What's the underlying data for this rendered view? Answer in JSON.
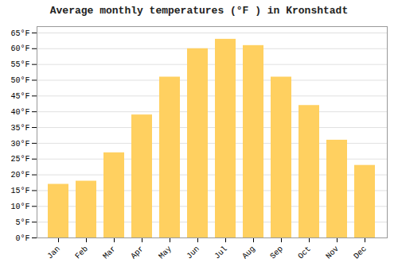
{
  "chart_data": {
    "type": "bar",
    "title": "Average monthly temperatures (°F ) in Kronshtadt",
    "categories": [
      "Jan",
      "Feb",
      "Mar",
      "Apr",
      "May",
      "Jun",
      "Jul",
      "Aug",
      "Sep",
      "Oct",
      "Nov",
      "Dec"
    ],
    "values": [
      17,
      18,
      27,
      39,
      51,
      60,
      63,
      61,
      51,
      42,
      31,
      23
    ],
    "color": "#FFD060",
    "ylim": [
      0,
      67
    ],
    "yticks": [
      {
        "value": 0,
        "label": "0°F"
      },
      {
        "value": 5,
        "label": "5°F"
      },
      {
        "value": 10,
        "label": "10°F"
      },
      {
        "value": 15,
        "label": "15°F"
      },
      {
        "value": 20,
        "label": "20°F"
      },
      {
        "value": 25,
        "label": "25°F"
      },
      {
        "value": 30,
        "label": "30°F"
      },
      {
        "value": 35,
        "label": "35°F"
      },
      {
        "value": 40,
        "label": "40°F"
      },
      {
        "value": 45,
        "label": "45°F"
      },
      {
        "value": 50,
        "label": "50°F"
      },
      {
        "value": 55,
        "label": "55°F"
      },
      {
        "value": 60,
        "label": "60°F"
      },
      {
        "value": 65,
        "label": "65°F"
      }
    ],
    "grid": true
  }
}
